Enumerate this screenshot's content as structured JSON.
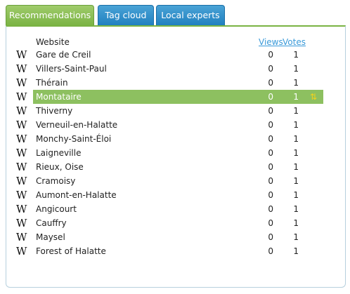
{
  "tabs": [
    {
      "label": "Recommendations",
      "active": true
    },
    {
      "label": "Tag cloud",
      "active": false
    },
    {
      "label": "Local experts",
      "active": false
    }
  ],
  "table": {
    "headers": {
      "website": "Website",
      "views": "Views",
      "votes": "Votes"
    },
    "rows": [
      {
        "site": "Gare de Creil",
        "views": "0",
        "votes": "1"
      },
      {
        "site": "Villers-Saint-Paul",
        "views": "0",
        "votes": "1"
      },
      {
        "site": "Thérain",
        "views": "0",
        "votes": "1"
      },
      {
        "site": "Montataire",
        "views": "0",
        "votes": "1",
        "highlighted": true
      },
      {
        "site": "Thiverny",
        "views": "0",
        "votes": "1"
      },
      {
        "site": "Verneuil-en-Halatte",
        "views": "0",
        "votes": "1"
      },
      {
        "site": "Monchy-Saint-Éloi",
        "views": "0",
        "votes": "1"
      },
      {
        "site": "Laigneville",
        "views": "0",
        "votes": "1"
      },
      {
        "site": "Rieux, Oise",
        "views": "0",
        "votes": "1"
      },
      {
        "site": "Cramoisy",
        "views": "0",
        "votes": "1"
      },
      {
        "site": "Aumont-en-Halatte",
        "views": "0",
        "votes": "1"
      },
      {
        "site": "Angicourt",
        "views": "0",
        "votes": "1"
      },
      {
        "site": "Cauffry",
        "views": "0",
        "votes": "1"
      },
      {
        "site": "Maysel",
        "views": "0",
        "votes": "1"
      },
      {
        "site": "Forest of Halatte",
        "views": "0",
        "votes": "1"
      }
    ]
  },
  "icons": {
    "row_source": "wikipedia-w-icon",
    "vote_toggle": "up-down-arrows-icon"
  },
  "colors": {
    "active_tab": "#7ab343",
    "inactive_tab": "#1f7fbf",
    "highlight_row": "#8dc060",
    "link": "#3a9ad9",
    "vote_arrow": "#f2d21b"
  }
}
